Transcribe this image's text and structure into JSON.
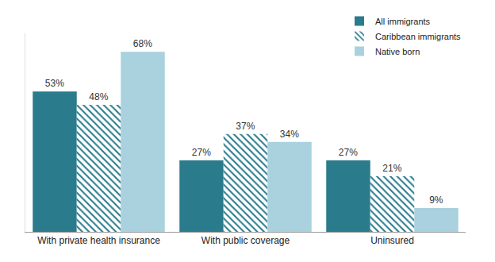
{
  "chart_data": {
    "type": "bar",
    "categories": [
      "With private health insurance",
      "With public coverage",
      "Uninsured"
    ],
    "series": [
      {
        "name": "All immigrants",
        "color": "#2a7b8c",
        "values": [
          53,
          27,
          27
        ],
        "value_labels": [
          "53%",
          "27%",
          "27%"
        ]
      },
      {
        "name": "Caribbean immigrants",
        "color": "#2a7b8c",
        "marker": "hatch",
        "values": [
          48,
          37,
          21
        ],
        "value_labels": [
          "48%",
          "37%",
          "21%"
        ]
      },
      {
        "name": "Native born",
        "color": "#a9d2de",
        "values": [
          68,
          34,
          9
        ],
        "value_labels": [
          "68%",
          "34%",
          "9%"
        ]
      }
    ],
    "ylim": [
      0,
      75
    ],
    "yticks": [],
    "tick_labels": "x",
    "data_labels": true,
    "legend": "upper right",
    "grid": false
  }
}
